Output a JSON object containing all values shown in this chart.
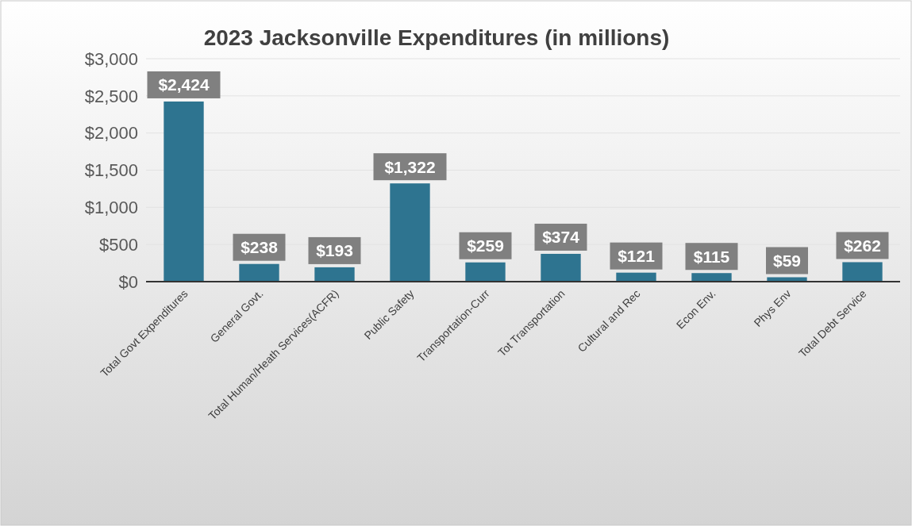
{
  "chart_data": {
    "type": "bar",
    "title": "2023 Jacksonville Expenditures (in millions)",
    "categories": [
      "Total Govt Expenditures",
      "General Govt.",
      "Total Human/Heath Services(ACFR)",
      "Public Safety",
      "Transportation-Curr",
      "Tot Transportation",
      "Cultural and Rec",
      "Econ Env.",
      "Phys Env",
      "Total Debt Service"
    ],
    "values": [
      2424,
      238,
      193,
      1322,
      259,
      374,
      121,
      115,
      59,
      262
    ],
    "value_labels": [
      "$2,424",
      "$238",
      "$193",
      "$1,322",
      "$259",
      "$374",
      "$121",
      "$115",
      "$59",
      "$262"
    ],
    "color": "#2e7490",
    "ylim": [
      0,
      3000
    ],
    "yticks": [
      {
        "value": 0,
        "label": "$0"
      },
      {
        "value": 500,
        "label": "$500"
      },
      {
        "value": 1000,
        "label": "$1,000"
      },
      {
        "value": 1500,
        "label": "$1,500"
      },
      {
        "value": 2000,
        "label": "$2,000"
      },
      {
        "value": 2500,
        "label": "$2,500"
      },
      {
        "value": 3000,
        "label": "$3,000"
      }
    ],
    "grid": "y"
  }
}
